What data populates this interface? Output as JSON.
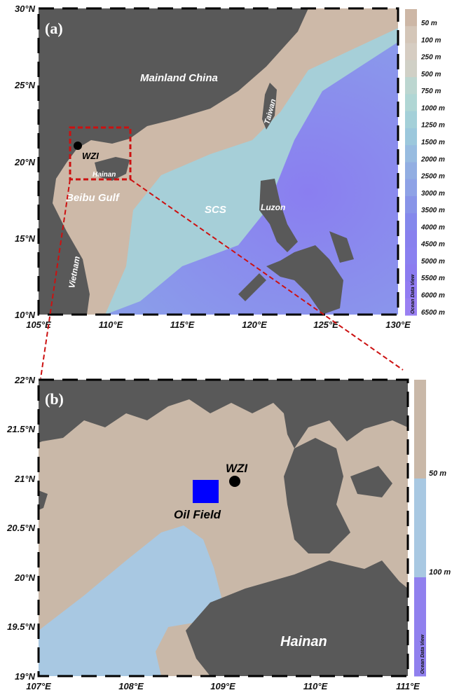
{
  "panel_a": {
    "label": "(a)",
    "lat_ticks": [
      "30°N",
      "25°N",
      "20°N",
      "15°N",
      "10°N"
    ],
    "lon_ticks": [
      "105°E",
      "110°E",
      "115°E",
      "120°E",
      "125°E",
      "130°E"
    ],
    "place_labels": {
      "mainland_china": "Mainland China",
      "taiwan": "Taiwan",
      "wzi": "WZI",
      "hainan": "Hainan",
      "beibu_gulf": "Beibu Gulf",
      "scs": "SCS",
      "luzon": "Luzon",
      "vietnam": "Vietnam"
    },
    "colorbar": {
      "levels": [
        "50 m",
        "100 m",
        "250 m",
        "500 m",
        "750 m",
        "1000 m",
        "1250 m",
        "1500 m",
        "2000 m",
        "2500 m",
        "3000 m",
        "3500 m",
        "4000 m",
        "4500 m",
        "5000 m",
        "5500 m",
        "6000 m",
        "6500 m"
      ],
      "colors": [
        "#cdb7a6",
        "#d4c6b8",
        "#d6cdc2",
        "#d0d0c6",
        "#bcd6d0",
        "#b0d6d4",
        "#a4d0d8",
        "#9cc8dc",
        "#98bce0",
        "#92aee2",
        "#8ea2e6",
        "#8894e8",
        "#8488ec",
        "#8880ee",
        "#8a80f0",
        "#8c7cf0",
        "#927cf2",
        "#9a80f2"
      ],
      "credit": "Ocean Data View"
    },
    "wzi_marker": {
      "lon": 109.1,
      "lat": 21.0
    },
    "zoom_box": {
      "lon": [
        107,
        111
      ],
      "lat": [
        19,
        22
      ]
    }
  },
  "panel_b": {
    "label": "(b)",
    "lat_ticks": [
      "22°N",
      "21.5°N",
      "21°N",
      "20.5°N",
      "20°N",
      "19.5°N",
      "19°N"
    ],
    "lon_ticks": [
      "107°E",
      "108°E",
      "109°E",
      "110°E",
      "111°E"
    ],
    "place_labels": {
      "wzi": "WZI",
      "oil_field": "Oil Field",
      "hainan": "Hainan"
    },
    "colorbar": {
      "levels": [
        "50 m",
        "100 m"
      ],
      "colors": [
        "#c9b8a8",
        "#a8c8e2",
        "#9080ee"
      ],
      "credit": "Ocean Data View"
    },
    "wzi_marker": {
      "lon": 109.15,
      "lat": 20.97
    },
    "oil_field": {
      "lon": [
        108.7,
        108.98
      ],
      "lat": [
        20.65,
        20.93
      ],
      "color": "#0000ff"
    }
  },
  "colors": {
    "land": "#595959",
    "zoom_box": "#cc1111"
  }
}
